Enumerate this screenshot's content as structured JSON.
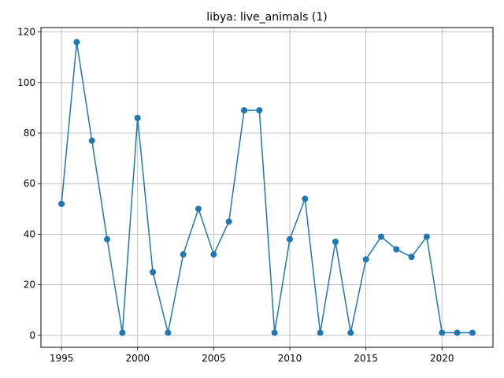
{
  "chart_data": {
    "type": "line",
    "title": "libya: live_animals (1)",
    "xlabel": "",
    "ylabel": "",
    "xlim": [
      1993.65,
      2023.35
    ],
    "ylim": [
      -4.75,
      121.75
    ],
    "x_ticks": [
      1995,
      2000,
      2005,
      2010,
      2015,
      2020
    ],
    "y_ticks": [
      0,
      20,
      40,
      60,
      80,
      100,
      120
    ],
    "grid": true,
    "series": [
      {
        "color": "#1f77b4",
        "marker": "circle",
        "x": [
          1995,
          1996,
          1997,
          1998,
          1999,
          2000,
          2001,
          2002,
          2003,
          2004,
          2005,
          2006,
          2007,
          2008,
          2009,
          2010,
          2011,
          2012,
          2013,
          2014,
          2015,
          2016,
          2017,
          2018,
          2019,
          2020,
          2021,
          2022
        ],
        "y": [
          52,
          116,
          77,
          38,
          1,
          86,
          25,
          1,
          32,
          50,
          32,
          45,
          89,
          89,
          1,
          38,
          54,
          1,
          37,
          1,
          30,
          39,
          34,
          31,
          39,
          1,
          1,
          1
        ]
      }
    ]
  }
}
